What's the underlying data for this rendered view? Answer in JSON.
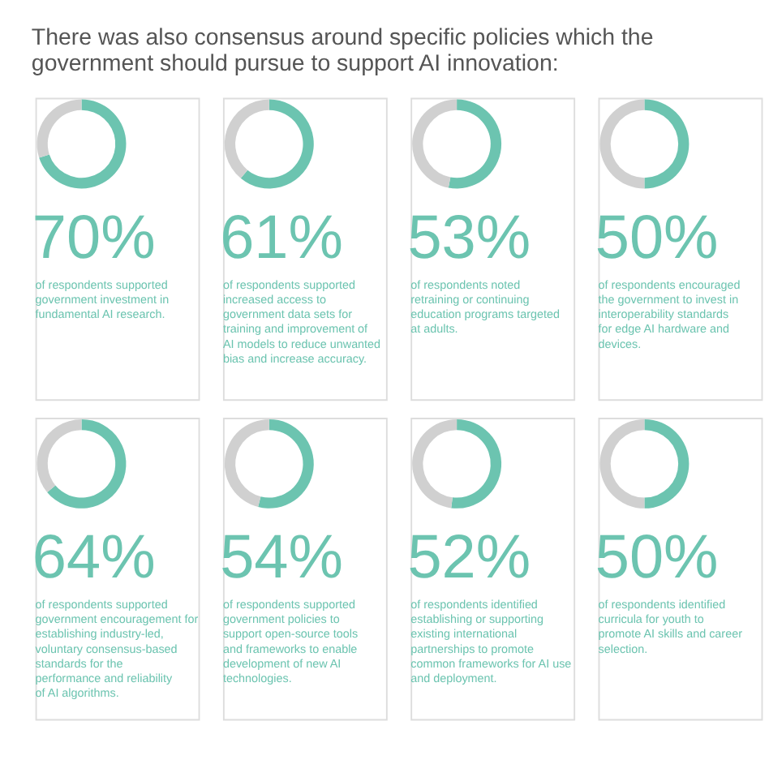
{
  "chart_data": [
    {
      "type": "donut",
      "title": "There was also consensus around specific policies which the government should pursue to support AI innovation:",
      "categories": [
        null,
        null
      ],
      "values": [
        70,
        30
      ],
      "colors": [
        "#6cc4b0",
        "#d0d0d0"
      ],
      "value_labels": [
        "70%",
        null
      ],
      "annotations": [
        "of respondents supported government investment in fundamental AI research."
      ]
    },
    {
      "type": "donut",
      "categories": [
        null,
        null
      ],
      "values": [
        61,
        39
      ],
      "colors": [
        "#6cc4b0",
        "#d0d0d0"
      ],
      "value_labels": [
        "61%",
        null
      ],
      "annotations": [
        "of respondents supported increased access to government data sets for training and improvement of AI models to reduce unwanted bias and increase accuracy."
      ]
    },
    {
      "type": "donut",
      "categories": [
        null,
        null
      ],
      "values": [
        53,
        47
      ],
      "colors": [
        "#6cc4b0",
        "#d0d0d0"
      ],
      "value_labels": [
        "53%",
        null
      ],
      "annotations": [
        "of respondents noted retraining or continuing education programs targeted at adults."
      ]
    },
    {
      "type": "donut",
      "categories": [
        null,
        null
      ],
      "values": [
        50,
        50
      ],
      "colors": [
        "#6cc4b0",
        "#d0d0d0"
      ],
      "value_labels": [
        "50%",
        null
      ],
      "annotations": [
        "of respondents encouraged the government to invest in interoperability standards for edge AI hardware and devices."
      ]
    },
    {
      "type": "donut",
      "categories": [
        null,
        null
      ],
      "values": [
        64,
        36
      ],
      "colors": [
        "#6cc4b0",
        "#d0d0d0"
      ],
      "value_labels": [
        "64%",
        null
      ],
      "annotations": [
        "of respondents supported government encouragement for establishing industry-led, voluntary consensus-based standards for the performance and reliability of AI algorithms."
      ]
    },
    {
      "type": "donut",
      "categories": [
        null,
        null
      ],
      "values": [
        54,
        46
      ],
      "colors": [
        "#6cc4b0",
        "#d0d0d0"
      ],
      "value_labels": [
        "54%",
        null
      ],
      "annotations": [
        "of respondents supported government policies to support open-source tools and frameworks to enable development of new AI technologies."
      ]
    },
    {
      "type": "donut",
      "categories": [
        null,
        null
      ],
      "values": [
        52,
        48
      ],
      "colors": [
        "#6cc4b0",
        "#d0d0d0"
      ],
      "value_labels": [
        "52%",
        null
      ],
      "annotations": [
        "of respondents identified establishing or supporting existing international partnerships to promote common frameworks for AI use and deployment."
      ]
    },
    {
      "type": "donut",
      "categories": [
        null,
        null
      ],
      "values": [
        50,
        50
      ],
      "colors": [
        "#6cc4b0",
        "#d0d0d0"
      ],
      "value_labels": [
        "50%",
        null
      ],
      "annotations": [
        "of respondents identified curricula for youth to promote AI skills and career selection."
      ]
    }
  ]
}
